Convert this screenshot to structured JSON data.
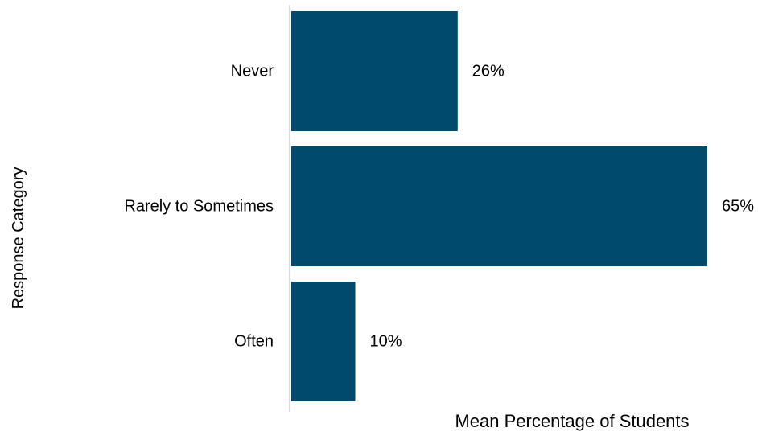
{
  "chart_data": {
    "type": "bar",
    "orientation": "horizontal",
    "categories": [
      "Never",
      "Rarely to Sometimes",
      "Often"
    ],
    "values": [
      26,
      65,
      10
    ],
    "value_labels": [
      "26%",
      "65%",
      "10%"
    ],
    "xlabel": "Mean Percentage of Students",
    "ylabel": "Response Category",
    "xlim": [
      0,
      65
    ],
    "grid": false,
    "bar_color": "#004a6e",
    "axis_color": "#d9d9d9"
  }
}
